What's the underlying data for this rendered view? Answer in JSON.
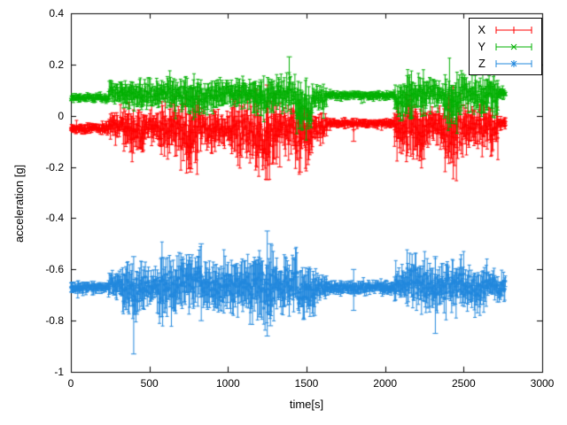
{
  "figure": {
    "background": "#ffffff",
    "axis_color": "#000000"
  },
  "chart_data": {
    "type": "scatter",
    "title": "",
    "xlabel": "time[s]",
    "ylabel": "acceleration [g]",
    "xlim": [
      0,
      3000
    ],
    "ylim": [
      -1,
      0.4
    ],
    "xticks": [
      0,
      500,
      1000,
      1500,
      2000,
      2500,
      3000
    ],
    "yticks": [
      -1,
      -0.8,
      -0.6,
      -0.4,
      -0.2,
      0,
      0.2,
      0.4
    ],
    "grid": false,
    "legend_position": "top-right-inside",
    "segment_fields": [
      "t_start",
      "t_end",
      "mean",
      "noise_amp"
    ],
    "spike_fields": [
      "t",
      "y_low",
      "y_high"
    ],
    "series": [
      {
        "name": "X",
        "color": "#ff0000",
        "marker": "plus",
        "baseline": -0.05,
        "segments": [
          [
            0,
            240,
            -0.05,
            0.018
          ],
          [
            240,
            330,
            -0.035,
            0.05
          ],
          [
            330,
            470,
            -0.06,
            0.09
          ],
          [
            470,
            560,
            -0.04,
            0.05
          ],
          [
            560,
            700,
            -0.06,
            0.1
          ],
          [
            700,
            810,
            -0.07,
            0.12
          ],
          [
            810,
            930,
            -0.05,
            0.08
          ],
          [
            930,
            1020,
            -0.05,
            0.06
          ],
          [
            1020,
            1140,
            -0.06,
            0.1
          ],
          [
            1140,
            1310,
            -0.07,
            0.13
          ],
          [
            1310,
            1430,
            -0.05,
            0.09
          ],
          [
            1430,
            1540,
            -0.08,
            0.1
          ],
          [
            1540,
            1630,
            -0.04,
            0.05
          ],
          [
            1630,
            2060,
            -0.03,
            0.015
          ],
          [
            2060,
            2140,
            -0.05,
            0.08
          ],
          [
            2140,
            2260,
            -0.06,
            0.1
          ],
          [
            2260,
            2370,
            -0.04,
            0.06
          ],
          [
            2370,
            2490,
            -0.07,
            0.11
          ],
          [
            2490,
            2610,
            -0.05,
            0.08
          ],
          [
            2610,
            2720,
            -0.06,
            0.09
          ],
          [
            2720,
            2770,
            -0.03,
            0.02
          ]
        ],
        "spikes": [
          [
            760,
            -0.22,
            -0.02
          ],
          [
            1250,
            -0.25,
            0.12
          ],
          [
            1330,
            -0.2,
            0.05
          ],
          [
            1460,
            -0.22,
            0.0
          ],
          [
            1800,
            -0.1,
            -0.01
          ]
        ]
      },
      {
        "name": "Y",
        "color": "#00b000",
        "marker": "cross",
        "baseline": 0.08,
        "segments": [
          [
            0,
            240,
            0.07,
            0.015
          ],
          [
            240,
            330,
            0.09,
            0.04
          ],
          [
            330,
            470,
            0.08,
            0.05
          ],
          [
            470,
            700,
            0.09,
            0.05
          ],
          [
            700,
            930,
            0.08,
            0.06
          ],
          [
            930,
            1140,
            0.09,
            0.05
          ],
          [
            1140,
            1310,
            0.07,
            0.06
          ],
          [
            1310,
            1430,
            0.09,
            0.06
          ],
          [
            1430,
            1540,
            0.04,
            0.08
          ],
          [
            1540,
            1630,
            0.07,
            0.04
          ],
          [
            1630,
            2060,
            0.08,
            0.015
          ],
          [
            2060,
            2140,
            0.07,
            0.06
          ],
          [
            2140,
            2260,
            0.08,
            0.07
          ],
          [
            2260,
            2370,
            0.09,
            0.05
          ],
          [
            2370,
            2490,
            0.06,
            0.08
          ],
          [
            2490,
            2610,
            0.09,
            0.06
          ],
          [
            2610,
            2720,
            0.08,
            0.07
          ],
          [
            2720,
            2770,
            0.09,
            0.02
          ]
        ],
        "spikes": [
          [
            1210,
            0.0,
            0.14
          ],
          [
            1390,
            0.1,
            0.23
          ],
          [
            1460,
            -0.05,
            0.1
          ],
          [
            2100,
            -0.02,
            0.12
          ],
          [
            2430,
            -0.03,
            0.1
          ]
        ]
      },
      {
        "name": "Z",
        "color": "#2288dd",
        "marker": "star",
        "baseline": -0.67,
        "segments": [
          [
            0,
            240,
            -0.67,
            0.02
          ],
          [
            240,
            330,
            -0.66,
            0.05
          ],
          [
            330,
            470,
            -0.68,
            0.09
          ],
          [
            470,
            560,
            -0.66,
            0.06
          ],
          [
            560,
            700,
            -0.67,
            0.1
          ],
          [
            700,
            830,
            -0.64,
            0.1
          ],
          [
            830,
            950,
            -0.66,
            0.08
          ],
          [
            950,
            1140,
            -0.67,
            0.09
          ],
          [
            1140,
            1310,
            -0.68,
            0.12
          ],
          [
            1310,
            1450,
            -0.66,
            0.1
          ],
          [
            1450,
            1560,
            -0.68,
            0.09
          ],
          [
            1560,
            1630,
            -0.67,
            0.04
          ],
          [
            1630,
            2060,
            -0.67,
            0.025
          ],
          [
            2060,
            2140,
            -0.66,
            0.06
          ],
          [
            2140,
            2260,
            -0.65,
            0.09
          ],
          [
            2260,
            2400,
            -0.67,
            0.08
          ],
          [
            2400,
            2520,
            -0.66,
            0.09
          ],
          [
            2520,
            2650,
            -0.67,
            0.08
          ],
          [
            2650,
            2770,
            -0.67,
            0.05
          ]
        ],
        "spikes": [
          [
            400,
            -0.93,
            -0.55
          ],
          [
            830,
            -0.8,
            -0.5
          ],
          [
            1250,
            -0.86,
            -0.45
          ],
          [
            1270,
            -0.82,
            -0.5
          ],
          [
            1800,
            -0.76,
            -0.6
          ],
          [
            2320,
            -0.85,
            -0.55
          ]
        ]
      }
    ]
  }
}
